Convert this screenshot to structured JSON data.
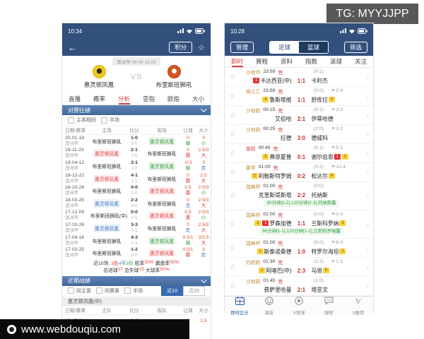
{
  "overlay": {
    "tg": "TG: MYYJJPP",
    "watermark": "www.webdouqiu.com"
  },
  "palette": {
    "win": "#e34545",
    "lose": "#3f9e45",
    "push": "#4a7ec8",
    "dark": "#333333",
    "value": "#d9542b",
    "league_orange": "#c2903e",
    "league_red": "#cf4b4b",
    "score_red": "#cc2b2b",
    "header_blue": "#33507d",
    "section_blue": "#44699c",
    "active_blue": "#3a6bb0",
    "tab_red": "#d93e3e"
  },
  "icons": {
    "back": "←",
    "star_outline": "☆",
    "chevron_right": "›",
    "corner_flag": "⚑",
    "status_icons": [
      "signal-icon",
      "wifi-icon",
      "battery-icon"
    ]
  },
  "left": {
    "status_time": "10:34",
    "nav": {
      "standings": "积分"
    },
    "match": {
      "league_pill": "澳洲甲 08-05 16:00",
      "home": "惠灵顿凤凰",
      "vs": "VS",
      "away": "布里斯班狮吼"
    },
    "tabs": [
      {
        "label": "直播"
      },
      {
        "label": "概率"
      },
      {
        "label": "分析",
        "active": true
      },
      {
        "label": "亚指"
      },
      {
        "label": "欧指"
      },
      {
        "label": "大小"
      }
    ],
    "h2h": {
      "title": "对赛往绩",
      "filters": [
        "主客相同",
        "半场"
      ],
      "headers": [
        "日期/赛事",
        "主场",
        "比分",
        "客场",
        "让球",
        "大小"
      ],
      "rows": [
        {
          "date": "20-01-18",
          "league": "澳洲甲",
          "home": "布里斯班狮吼",
          "homeC": "dark",
          "score": "1-0",
          "half": "0-0",
          "away": "惠灵顿凤凰",
          "awayC": "lose",
          "let": "0",
          "letR": "输",
          "letRC": "lose",
          "ou": "3",
          "ouR": "小",
          "ouRC": "lose"
        },
        {
          "date": "19-11-23",
          "league": "澳洲甲",
          "home": "惠灵顿凤凰",
          "homeC": "win",
          "score": "2-1",
          "half": "1-0",
          "away": "布里斯班狮吼",
          "awayC": "dark",
          "let": "0",
          "letR": "赢",
          "letRC": "win",
          "ou": "2.5/3",
          "ouR": "大",
          "ouRC": "win"
        },
        {
          "date": "19-04-12",
          "league": "澳洲甲",
          "home": "布里斯班狮吼",
          "homeC": "dark",
          "score": "2-1",
          "half": "2-0",
          "away": "惠灵顿凤凰",
          "awayC": "lose",
          "let": "-0.5",
          "letR": "输",
          "letRC": "lose",
          "ou": "3",
          "ouR": "走",
          "ouRC": "push"
        },
        {
          "date": "18-12-22",
          "league": "澳洲甲",
          "home": "惠灵顿凤凰",
          "homeC": "win",
          "score": "4-1",
          "half": "1-1",
          "away": "布里斯班狮吼",
          "awayC": "dark",
          "let": "0",
          "letR": "赢",
          "letRC": "win",
          "ou": "2.5",
          "ouR": "大",
          "ouRC": "win"
        },
        {
          "date": "18-10-28",
          "league": "澳洲甲",
          "home": "布里斯班狮吼",
          "homeC": "dark",
          "score": "0-0",
          "half": "0-0",
          "away": "惠灵顿凤凰",
          "awayC": "win",
          "let": "0.5",
          "letR": "赢",
          "letRC": "win",
          "ou": "2.5/3",
          "ouR": "小",
          "ouRC": "lose"
        },
        {
          "date": "18-03-25",
          "league": "澳洲甲",
          "home": "惠灵顿凤凰",
          "homeC": "push",
          "score": "2-2",
          "half": "0-0",
          "away": "布里斯班狮吼",
          "awayC": "dark",
          "let": "0",
          "letR": "走",
          "letRC": "push",
          "ou": "2.5/3",
          "ouR": "大",
          "ouRC": "win"
        },
        {
          "date": "17-12-09",
          "league": "澳洲甲",
          "home": "布里斯班狮吼(中)",
          "homeC": "dark",
          "score": "0-0",
          "half": "0-0",
          "away": "惠灵顿凤凰",
          "awayC": "win",
          "let": "0.5",
          "letR": "赢",
          "letRC": "win",
          "ou": "2.5/3",
          "ouR": "小",
          "ouRC": "lose"
        },
        {
          "date": "17-10-28",
          "league": "澳洲甲",
          "home": "惠灵顿凤凰",
          "homeC": "push",
          "score": "3-3",
          "half": "3-1",
          "away": "布里斯班狮吼",
          "awayC": "dark",
          "let": "0",
          "letR": "走",
          "letRC": "push",
          "ou": "2.5/3",
          "ouR": "大",
          "ouRC": "win"
        },
        {
          "date": "17-04-16",
          "league": "澳洲甲",
          "home": "布里斯班狮吼",
          "homeC": "dark",
          "score": "4-3",
          "half": "1-3",
          "away": "惠灵顿凤凰",
          "awayC": "lose",
          "let": "0.5/1",
          "letR": "输",
          "letRC": "lose",
          "ou": "3/3.5",
          "ouR": "大",
          "ouRC": "win"
        },
        {
          "date": "17-02-25",
          "league": "澳洲甲",
          "home": "布里斯班狮吼",
          "homeC": "dark",
          "score": "1-2",
          "half": "0-0",
          "away": "惠灵顿凤凰",
          "awayC": "win",
          "let": "0.5/1",
          "letR": "赢",
          "letRC": "win",
          "ou": "3",
          "ouR": "走",
          "ouRC": "push"
        }
      ],
      "summary1": [
        {
          "t": "近10场: ",
          "c": "dark"
        },
        {
          "t": "3胜",
          "c": "win"
        },
        {
          "t": "4平",
          "c": "push"
        },
        {
          "t": "3负",
          "c": "lose"
        },
        {
          "t": " 胜率",
          "c": "dark"
        },
        {
          "t": "30%",
          "c": "win"
        },
        {
          "t": " 赢盘率",
          "c": "dark"
        },
        {
          "t": "50%",
          "c": "win"
        }
      ],
      "summary2": [
        {
          "t": "总进球",
          "c": "dark"
        },
        {
          "t": "17",
          "c": "win"
        },
        {
          "t": " 总失球",
          "c": "dark"
        },
        {
          "t": "15",
          "c": "value"
        },
        {
          "t": " 大球率",
          "c": "dark"
        },
        {
          "t": "50%",
          "c": "win"
        }
      ]
    },
    "recent": {
      "title": "近期战绩",
      "filters": [
        "同主客",
        "同赛事",
        "半场"
      ],
      "range": [
        {
          "label": "近10",
          "active": true
        },
        {
          "label": "近20"
        }
      ],
      "team_header": "惠灵顿凤凰(中)",
      "headers": [
        "日期/赛事",
        "主队",
        "比分",
        "客队",
        "让球",
        "大小"
      ],
      "rows": [
        {
          "date": "20-07-31",
          "league": "",
          "home": "",
          "homeC": "dark",
          "score": "1-0",
          "half": "",
          "away": "",
          "awayC": "dark",
          "let": "0",
          "letR": "",
          "letRC": "dark",
          "ou": "2.5",
          "ouR": "",
          "ouRC": "dark"
        }
      ]
    }
  },
  "right": {
    "status_time": "10:28",
    "header": {
      "manage": "管理",
      "seg_football": "足球",
      "seg_basketball": "篮球",
      "filter": "筛选"
    },
    "tabs": [
      {
        "label": "即时",
        "active": true
      },
      {
        "label": "赛程"
      },
      {
        "label": "资料"
      },
      {
        "label": "指数"
      },
      {
        "label": "滚球"
      },
      {
        "label": "关注"
      }
    ],
    "matches": [
      {
        "league": "沙地甲",
        "lc": "orange",
        "time": "23:59",
        "status": "完",
        "half": "(0:1)",
        "corner": "",
        "homeBadges": [
          [
            "1",
            "red"
          ]
        ],
        "home": "卡达西亚(中)",
        "score": "1:1",
        "away": "卡利杰",
        "awayBadges": [],
        "extra": ""
      },
      {
        "league": "棉兰乙",
        "lc": "orange",
        "time": "23:59",
        "status": "完",
        "half": "(0:0)",
        "corner": "2-4",
        "homeBadges": [
          [
            "4",
            "yellow"
          ]
        ],
        "home": "鲁斯塔维",
        "score": "1:1",
        "away": "舒库拉",
        "awayBadges": [
          [
            "3",
            "yellow"
          ]
        ],
        "extra": ""
      },
      {
        "league": "沙地联",
        "lc": "orange",
        "time": "00:15",
        "status": "完",
        "half": "(0:1)",
        "corner": "3-3",
        "homeBadges": [],
        "home": "艾伯哈",
        "score": "2:1",
        "away": "伊蒂哈德",
        "awayBadges": [],
        "extra": ""
      },
      {
        "league": "沙地联",
        "lc": "orange",
        "time": "00:25",
        "status": "完",
        "half": "(2:0)",
        "corner": "3-2",
        "homeBadges": [],
        "home": "拉德",
        "score": "3:0",
        "away": "德咸科",
        "awayBadges": [],
        "extra": ""
      },
      {
        "league": "挪超",
        "lc": "red",
        "time": "00:45",
        "status": "完",
        "half": "(0:1)",
        "corner": "5-1",
        "homeBadges": [
          [
            "3",
            "yellow"
          ]
        ],
        "home": "弗恩夏普",
        "score": "0:1",
        "away": "谢尔伯恩",
        "awayBadges": [
          [
            "1",
            "red"
          ],
          [
            "2",
            "yellow"
          ]
        ],
        "extra": ""
      },
      {
        "league": "挪甲",
        "lc": "orange",
        "time": "01:00",
        "status": "完",
        "half": "(0:2)",
        "corner": "12-4",
        "homeBadges": [
          [
            "1",
            "yellow"
          ]
        ],
        "home": "利勒斯特罗姆",
        "score": "0:2",
        "away": "松达尔",
        "awayBadges": [
          [
            "4",
            "yellow"
          ]
        ],
        "extra": ""
      },
      {
        "league": "瑞典杯",
        "lc": "orange",
        "time": "01:00",
        "status": "完",
        "half": "(0:0)",
        "corner": "",
        "homeBadges": [],
        "home": "克里斯堤斯塔",
        "score": "2:2",
        "away": "托纳斯",
        "awayBadges": [],
        "extra": "90分钟[2-2],120分钟[2-3],托纳斯赢"
      },
      {
        "league": "瑞典杯",
        "lc": "orange",
        "time": "01:00",
        "status": "完",
        "half": "(0:0)",
        "corner": "2-4",
        "homeBadges": [
          [
            "3",
            "yellow"
          ],
          [
            "1",
            "red"
          ]
        ],
        "home": "罗森加德",
        "score": "1:1",
        "away": "兰斯科罗纳",
        "awayBadges": [
          [
            "3",
            "yellow"
          ]
        ],
        "extra": "90分钟[1-1],120分钟[1-2],兰斯科罗纳赢"
      },
      {
        "league": "瑞典杯",
        "lc": "orange",
        "time": "01:00",
        "status": "完",
        "half": "(0:0)",
        "corner": "8-3",
        "homeBadges": [
          [
            "1",
            "yellow"
          ]
        ],
        "home": "斯泰诺桑德",
        "score": "1:0",
        "away": "特罗尔海坦",
        "awayBadges": [
          [
            "2",
            "yellow"
          ]
        ],
        "extra": ""
      },
      {
        "league": "约超联",
        "lc": "orange",
        "time": "01:30",
        "status": "完",
        "half": "(1:2)",
        "corner": "1-3",
        "homeBadges": [
          [
            "2",
            "yellow"
          ]
        ],
        "home": "阿喀巴(中)",
        "score": "2:3",
        "away": "马恩",
        "awayBadges": [
          [
            "5",
            "yellow"
          ]
        ],
        "extra": ""
      },
      {
        "league": "沙地联",
        "lc": "orange",
        "time": "01:45",
        "status": "完",
        "half": "(1:0)",
        "corner": "",
        "homeBadges": [],
        "home": "费萨里哈曼",
        "score": "2:1",
        "away": "塔亚文",
        "awayBadges": [],
        "extra": ""
      }
    ],
    "bottom_nav": [
      {
        "label": "即时比分",
        "icon": "scoreboard-icon",
        "active": true
      },
      {
        "label": "球友",
        "icon": "smiley-icon"
      },
      {
        "label": "V竞球",
        "icon": "football-icon"
      },
      {
        "label": "球吧",
        "icon": "chat-icon"
      },
      {
        "label": "V推荐",
        "icon": "v-icon"
      }
    ]
  }
}
